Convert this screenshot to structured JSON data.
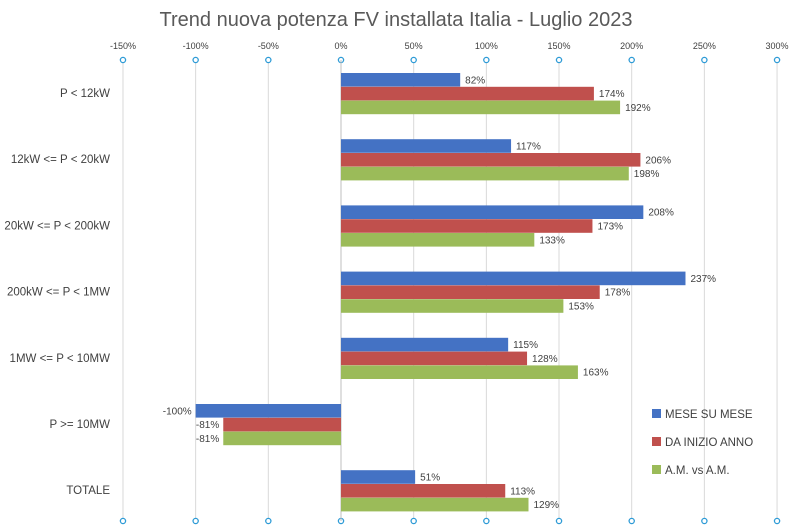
{
  "chart_data": {
    "type": "bar",
    "orientation": "horizontal",
    "title": "Trend nuova potenza FV installata Italia - Luglio 2023",
    "xlim": [
      -150,
      300
    ],
    "x_ticks": [
      -150,
      -100,
      -50,
      0,
      50,
      100,
      150,
      200,
      250,
      300
    ],
    "x_tick_labels": [
      "-150%",
      "-100%",
      "-50%",
      "0%",
      "50%",
      "100%",
      "150%",
      "200%",
      "250%",
      "300%"
    ],
    "grid": "vertical",
    "legend_position": "bottom-right",
    "categories": [
      "P < 12kW",
      "12kW <= P < 20kW",
      "20kW <= P < 200kW",
      "200kW <= P < 1MW",
      "1MW <= P < 10MW",
      "P >= 10MW",
      "TOTALE"
    ],
    "series": [
      {
        "name": "MESE SU  MESE",
        "color": "#4472c4",
        "values": [
          82,
          117,
          208,
          237,
          115,
          -100,
          51
        ],
        "labels": [
          "82%",
          "117%",
          "208%",
          "237%",
          "115%",
          "-100%",
          "51%"
        ]
      },
      {
        "name": "DA INIZIO ANNO",
        "color": "#c0504d",
        "values": [
          174,
          206,
          173,
          178,
          128,
          -81,
          113
        ],
        "labels": [
          "174%",
          "206%",
          "173%",
          "178%",
          "128%",
          "-81%",
          "113%"
        ]
      },
      {
        "name": "A.M. vs A.M.",
        "color": "#9bbb59",
        "values": [
          192,
          198,
          133,
          153,
          163,
          -81,
          129
        ],
        "labels": [
          "192%",
          "198%",
          "133%",
          "153%",
          "163%",
          "-81%",
          "129%"
        ]
      }
    ]
  }
}
